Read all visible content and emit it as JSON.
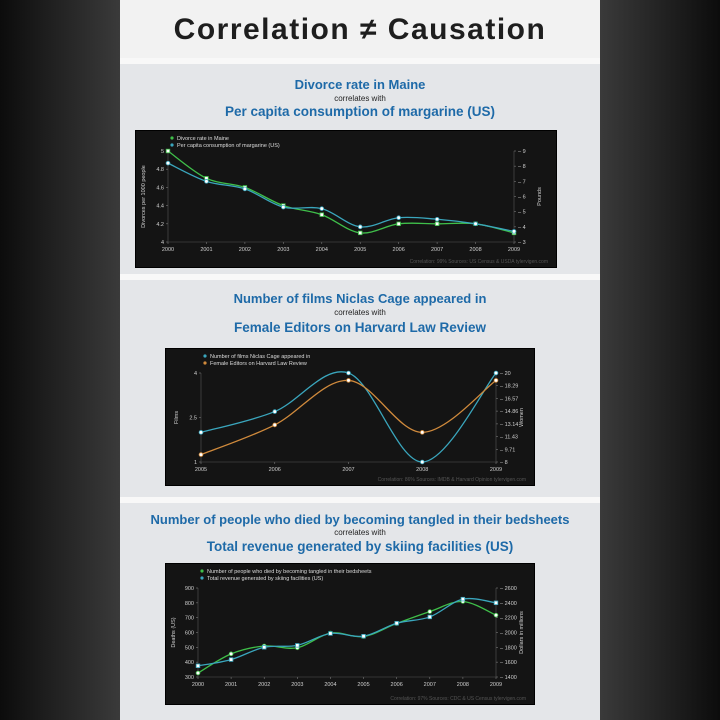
{
  "title": "Correlation ≠ Causation",
  "colors": {
    "green": "#3fbf4a",
    "cyan": "#3aa6bd",
    "orange": "#d08a3c",
    "title_blue": "#1e6aa8"
  },
  "panels": [
    {
      "title1": "Divorce rate in Maine",
      "correlates": "correlates with",
      "title2": "Per capita consumption of margarine (US)",
      "footer": "Correlation: 99%    Sources: US Census & USDA    tylervigen.com"
    },
    {
      "title1": "Number of films Niclas Cage appeared in",
      "correlates": "correlates with",
      "title2": "Female Editors on Harvard Law Review",
      "footer": "Correlation: 86%    Sources: IMDB & Harvard Opinion    tylervigen.com"
    },
    {
      "title1": "Number of people who died by becoming tangled in their bedsheets",
      "correlates": "correlates with",
      "title2": "Total revenue generated by skiing facilities (US)",
      "footer": "Correlation: 97%    Sources: CDC & US Census    tylervigen.com"
    }
  ],
  "chart_data": [
    {
      "type": "line",
      "x": [
        2000,
        2001,
        2002,
        2003,
        2004,
        2005,
        2006,
        2007,
        2008,
        2009
      ],
      "left_axis": {
        "label": "Divorces per 1000 people",
        "range": [
          4,
          5
        ],
        "ticks": [
          "4",
          "4.2",
          "4.4",
          "4.6",
          "4.8",
          "5"
        ]
      },
      "right_axis": {
        "label": "Pounds",
        "range": [
          3,
          9
        ],
        "ticks": [
          "3",
          "4",
          "5",
          "6",
          "7",
          "8",
          "9"
        ]
      },
      "series": [
        {
          "name": "Divorce rate in Maine",
          "axis": "left",
          "color": "#3fbf4a",
          "marker": "square",
          "values": [
            5.0,
            4.7,
            4.6,
            4.4,
            4.3,
            4.1,
            4.2,
            4.2,
            4.2,
            4.1
          ]
        },
        {
          "name": "Per capita consumption of margarine (US)",
          "axis": "right",
          "color": "#3aa6bd",
          "marker": "circle",
          "values": [
            8.2,
            7.0,
            6.5,
            5.3,
            5.2,
            4.0,
            4.6,
            4.5,
            4.2,
            3.7
          ]
        }
      ]
    },
    {
      "type": "line",
      "x": [
        2005,
        2006,
        2007,
        2008,
        2009
      ],
      "left_axis": {
        "label": "Films",
        "range": [
          1,
          4
        ],
        "ticks": [
          "1",
          "2.5",
          "4"
        ]
      },
      "right_axis": {
        "label": "Women",
        "range": [
          8,
          20
        ],
        "ticks": [
          "8",
          "9.71",
          "11.43",
          "13.14",
          "14.86",
          "16.57",
          "18.29",
          "20"
        ]
      },
      "series": [
        {
          "name": "Number of films Niclas Cage appeared in",
          "axis": "left",
          "color": "#3aa6bd",
          "marker": "circle",
          "values": [
            2,
            2.7,
            4,
            1,
            4
          ]
        },
        {
          "name": "Female Editors on Harvard Law Review",
          "axis": "right",
          "color": "#d08a3c",
          "marker": "circle",
          "values": [
            9,
            13,
            19,
            12,
            19
          ]
        }
      ]
    },
    {
      "type": "line",
      "x": [
        2000,
        2001,
        2002,
        2003,
        2004,
        2005,
        2006,
        2007,
        2008,
        2009
      ],
      "left_axis": {
        "label": "Deaths (US)",
        "range": [
          300,
          900
        ],
        "ticks": [
          "300",
          "400",
          "500",
          "600",
          "700",
          "800",
          "900"
        ]
      },
      "right_axis": {
        "label": "Dollars in millions",
        "range": [
          1400,
          2600
        ],
        "ticks": [
          "1400",
          "1600",
          "1800",
          "2000",
          "2200",
          "2400",
          "2600"
        ]
      },
      "series": [
        {
          "name": "Number of people who died by becoming tangled in their bedsheets",
          "axis": "left",
          "color": "#3fbf4a",
          "marker": "circle",
          "values": [
            327,
            456,
            509,
            497,
            596,
            573,
            661,
            741,
            809,
            717
          ]
        },
        {
          "name": "Total revenue generated by skiing facilities (US)",
          "axis": "right",
          "color": "#3aa6bd",
          "marker": "square",
          "values": [
            1551,
            1635,
            1801,
            1827,
            1987,
            1950,
            2125,
            2210,
            2450,
            2400
          ]
        }
      ]
    }
  ]
}
